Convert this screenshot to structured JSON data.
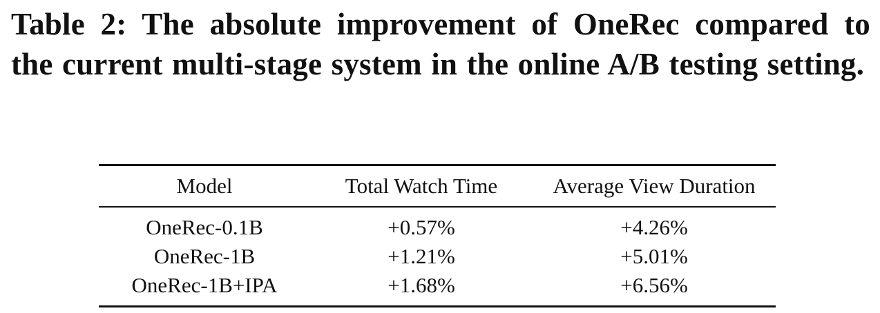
{
  "caption": "Table 2: The absolute improvement of OneRec compared to the current multi-stage system in the online A/B testing setting.",
  "table": {
    "headers": [
      "Model",
      "Total Watch Time",
      "Average View Duration"
    ],
    "rows": [
      [
        "OneRec-0.1B",
        "+0.57%",
        "+4.26%"
      ],
      [
        "OneRec-1B",
        "+1.21%",
        "+5.01%"
      ],
      [
        "OneRec-1B+IPA",
        "+1.68%",
        "+6.56%"
      ]
    ]
  },
  "chart_data": {
    "type": "table",
    "title": "Table 2: The absolute improvement of OneRec compared to the current multi-stage system in the online A/B testing setting.",
    "columns": [
      "Model",
      "Total Watch Time",
      "Average View Duration"
    ],
    "rows": [
      {
        "Model": "OneRec-0.1B",
        "Total Watch Time": "+0.57%",
        "Average View Duration": "+4.26%"
      },
      {
        "Model": "OneRec-1B",
        "Total Watch Time": "+1.21%",
        "Average View Duration": "+5.01%"
      },
      {
        "Model": "OneRec-1B+IPA",
        "Total Watch Time": "+1.68%",
        "Average View Duration": "+6.56%"
      }
    ]
  }
}
